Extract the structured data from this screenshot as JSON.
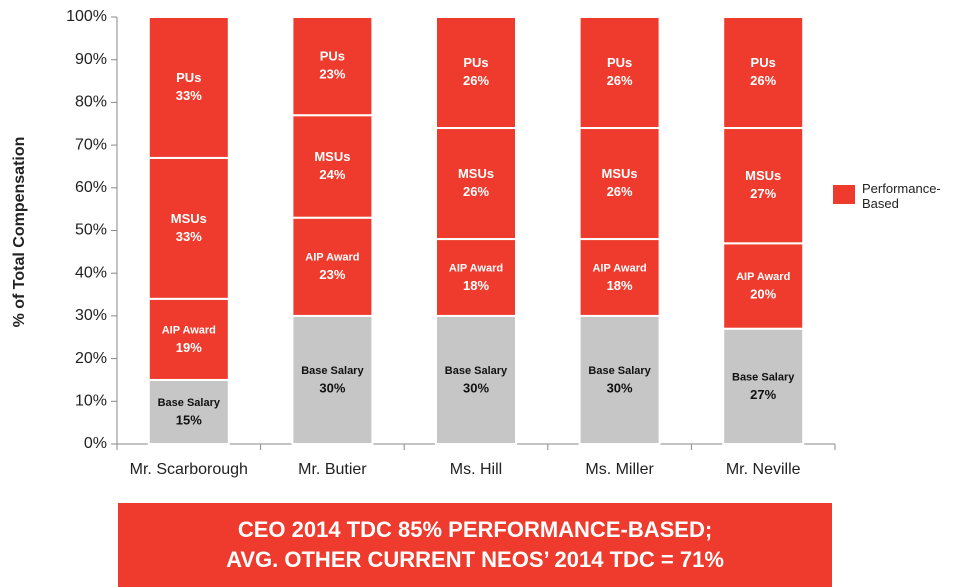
{
  "chart_data": {
    "type": "bar",
    "stacked": true,
    "y_label": "% of Total Compensation",
    "categories": [
      "Mr. Scarborough",
      "Mr. Butier",
      "Ms. Hill",
      "Ms. Miller",
      "Mr. Neville"
    ],
    "series": [
      {
        "name": "Base Salary",
        "color": "#c6c6c6",
        "text_color": "#111111",
        "values": [
          15,
          30,
          30,
          30,
          27
        ],
        "value_labels": [
          "15%",
          "30%",
          "30%",
          "30%",
          "27%"
        ]
      },
      {
        "name": "AIP Award",
        "color": "#ef3b2d",
        "text_color": "#ffffff",
        "values": [
          19,
          23,
          18,
          18,
          20
        ],
        "value_labels": [
          "19%",
          "23%",
          "18%",
          "18%",
          "20%"
        ]
      },
      {
        "name": "MSUs",
        "color": "#ef3b2d",
        "text_color": "#ffffff",
        "values": [
          33,
          24,
          26,
          26,
          27
        ],
        "value_labels": [
          "33%",
          "24%",
          "26%",
          "26%",
          "27%"
        ]
      },
      {
        "name": "PUs",
        "color": "#ef3b2d",
        "text_color": "#ffffff",
        "values": [
          33,
          23,
          26,
          26,
          26
        ],
        "value_labels": [
          "33%",
          "23%",
          "26%",
          "26%",
          "26%"
        ]
      }
    ],
    "legend": {
      "label": "Performance-Based",
      "color": "#ef3b2d"
    },
    "ylim": [
      0,
      100
    ],
    "yticks": [
      {
        "value": 0,
        "label": "0%"
      },
      {
        "value": 10,
        "label": "10%"
      },
      {
        "value": 20,
        "label": "20%"
      },
      {
        "value": 30,
        "label": "30%"
      },
      {
        "value": 40,
        "label": "40%"
      },
      {
        "value": 50,
        "label": "50%"
      },
      {
        "value": 60,
        "label": "60%"
      },
      {
        "value": 70,
        "label": "70%"
      },
      {
        "value": 80,
        "label": "80%"
      },
      {
        "value": 90,
        "label": "90%"
      },
      {
        "value": 100,
        "label": "100%"
      }
    ]
  },
  "banner": {
    "lines": [
      "CEO 2014 TDC 85% PERFORMANCE-BASED;",
      "AVG. OTHER CURRENT NEOS’ 2014 TDC = 71%"
    ]
  }
}
